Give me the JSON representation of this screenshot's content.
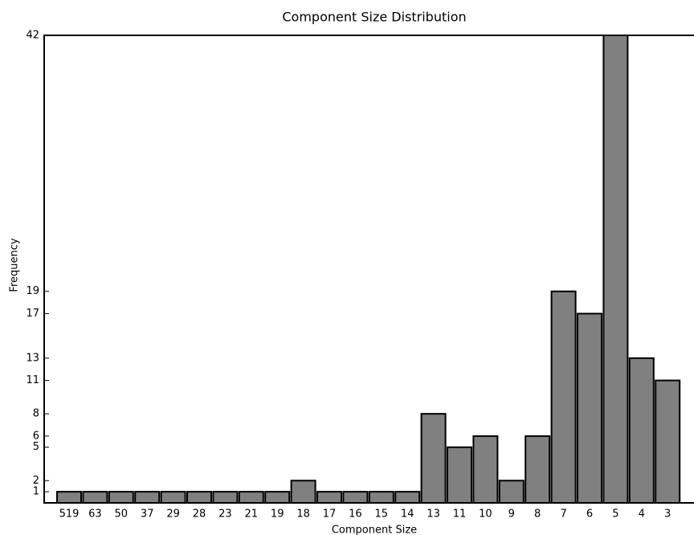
{
  "chart_data": {
    "type": "bar",
    "title": "Component Size Distribution",
    "x_label": "Component Size",
    "y_label": "Frequency",
    "categories": [
      "519",
      "63",
      "50",
      "37",
      "29",
      "28",
      "23",
      "21",
      "19",
      "18",
      "17",
      "16",
      "15",
      "14",
      "13",
      "11",
      "10",
      "9",
      "8",
      "7",
      "6",
      "5",
      "4",
      "3"
    ],
    "values": [
      1,
      1,
      1,
      1,
      1,
      1,
      1,
      1,
      1,
      2,
      1,
      1,
      1,
      1,
      8,
      5,
      6,
      2,
      6,
      19,
      17,
      42,
      13,
      11
    ],
    "color": "#808080",
    "ylim": [
      0,
      42
    ],
    "yticks": [
      1,
      2,
      5,
      6,
      8,
      11,
      13,
      17,
      19,
      42
    ],
    "grid": false
  }
}
